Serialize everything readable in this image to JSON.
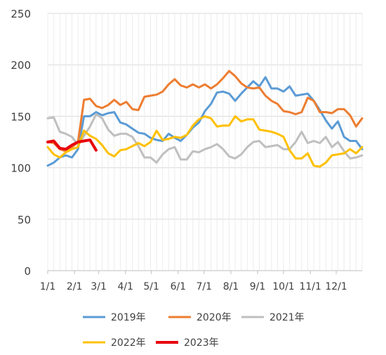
{
  "chart_data": {
    "type": "line",
    "title": "",
    "xlabel": "",
    "ylabel": "",
    "ylim": [
      0,
      250
    ],
    "yticks": [
      0,
      50,
      100,
      150,
      200,
      250
    ],
    "x_range_weeks": [
      0,
      52
    ],
    "x_ticks": [
      {
        "label": "1/1",
        "week": 0
      },
      {
        "label": "2/1",
        "week": 4.43
      },
      {
        "label": "3/1",
        "week": 8.43
      },
      {
        "label": "4/1",
        "week": 12.86
      },
      {
        "label": "5/1",
        "week": 17.14
      },
      {
        "label": "6/1",
        "week": 21.57
      },
      {
        "label": "7/1",
        "week": 25.86
      },
      {
        "label": "8/1",
        "week": 30.29
      },
      {
        "label": "9/1",
        "week": 34.71
      },
      {
        "label": "10/1",
        "week": 39.0
      },
      {
        "label": "11/1",
        "week": 43.43
      },
      {
        "label": "12/1",
        "week": 47.71
      }
    ],
    "grid": true,
    "legend_position": "bottom",
    "series": [
      {
        "name": "2019年",
        "color": "#5B9BD5",
        "x": [
          0,
          1,
          2,
          3,
          4,
          5,
          6,
          7,
          8,
          9,
          10,
          11,
          12,
          13,
          14,
          15,
          16,
          17,
          18,
          19,
          20,
          21,
          22,
          23,
          24,
          25,
          26,
          27,
          28,
          29,
          30,
          31,
          32,
          33,
          34,
          35,
          36,
          37,
          38,
          39,
          40,
          41,
          42,
          43,
          44,
          45,
          46,
          47,
          48,
          49,
          50,
          51,
          52
        ],
        "values": [
          102,
          105,
          110,
          112,
          110,
          118,
          150,
          150,
          154,
          151,
          153,
          154,
          144,
          142,
          138,
          134,
          133,
          129,
          127,
          126,
          133,
          129,
          126,
          132,
          139,
          144,
          155,
          162,
          173,
          174,
          172,
          165,
          172,
          178,
          184,
          179,
          188,
          177,
          177,
          174,
          179,
          170,
          171,
          172,
          165,
          156,
          146,
          138,
          145,
          130,
          126,
          126,
          118
        ]
      },
      {
        "name": "2020年",
        "color": "#ED7D31",
        "x": [
          0,
          1,
          2,
          3,
          4,
          5,
          6,
          7,
          8,
          9,
          10,
          11,
          12,
          13,
          14,
          15,
          16,
          17,
          18,
          19,
          20,
          21,
          22,
          23,
          24,
          25,
          26,
          27,
          28,
          29,
          30,
          31,
          32,
          33,
          34,
          35,
          36,
          37,
          38,
          39,
          40,
          41,
          42,
          43,
          44,
          45,
          46,
          47,
          48,
          49,
          50,
          51,
          52
        ],
        "values": [
          125,
          124,
          118,
          116,
          120,
          125,
          166,
          167,
          160,
          158,
          161,
          166,
          161,
          164,
          157,
          156,
          169,
          170,
          171,
          174,
          181,
          186,
          180,
          178,
          181,
          178,
          181,
          177,
          181,
          187,
          194,
          189,
          182,
          178,
          177,
          178,
          170,
          165,
          162,
          155,
          154,
          152,
          154,
          168,
          165,
          154,
          154,
          153,
          157,
          157,
          151,
          140,
          148
        ]
      },
      {
        "name": "2021年",
        "color": "#BFBFBF",
        "x": [
          0,
          1,
          2,
          3,
          4,
          5,
          6,
          7,
          8,
          9,
          10,
          11,
          12,
          13,
          14,
          15,
          16,
          17,
          18,
          19,
          20,
          21,
          22,
          23,
          24,
          25,
          26,
          27,
          28,
          29,
          30,
          31,
          32,
          33,
          34,
          35,
          36,
          37,
          38,
          39,
          40,
          41,
          42,
          43,
          44,
          45,
          46,
          47,
          48,
          49,
          50,
          51,
          52
        ],
        "values": [
          148,
          149,
          135,
          133,
          130,
          122,
          131,
          140,
          152,
          148,
          137,
          131,
          133,
          133,
          130,
          121,
          110,
          110,
          105,
          113,
          118,
          120,
          108,
          108,
          116,
          115,
          118,
          120,
          123,
          118,
          111,
          109,
          113,
          120,
          125,
          126,
          120,
          121,
          122,
          118,
          118,
          125,
          135,
          124,
          126,
          124,
          130,
          120,
          125,
          116,
          109,
          110,
          112
        ]
      },
      {
        "name": "2022年",
        "color": "#FFC000",
        "x": [
          0,
          1,
          2,
          3,
          4,
          5,
          6,
          7,
          8,
          9,
          10,
          11,
          12,
          13,
          14,
          15,
          16,
          17,
          18,
          19,
          20,
          21,
          22,
          23,
          24,
          25,
          26,
          27,
          28,
          29,
          30,
          31,
          32,
          33,
          34,
          35,
          36,
          37,
          38,
          39,
          40,
          41,
          42,
          43,
          44,
          45,
          46,
          47,
          48,
          49,
          50,
          51,
          52
        ],
        "values": [
          120,
          113,
          110,
          115,
          118,
          120,
          136,
          131,
          128,
          122,
          114,
          111,
          117,
          118,
          121,
          124,
          121,
          125,
          136,
          127,
          128,
          130,
          129,
          132,
          141,
          147,
          150,
          148,
          140,
          141,
          141,
          150,
          145,
          147,
          147,
          137,
          136,
          135,
          133,
          130,
          117,
          109,
          109,
          114,
          102,
          101,
          105,
          112,
          113,
          114,
          118,
          114,
          120
        ]
      },
      {
        "name": "2023年",
        "color": "#E8000B",
        "x": [
          0,
          1,
          2,
          3,
          4,
          5,
          6,
          7,
          8
        ],
        "values": [
          125,
          126,
          119,
          118,
          122,
          125,
          126,
          127,
          117
        ]
      }
    ]
  }
}
